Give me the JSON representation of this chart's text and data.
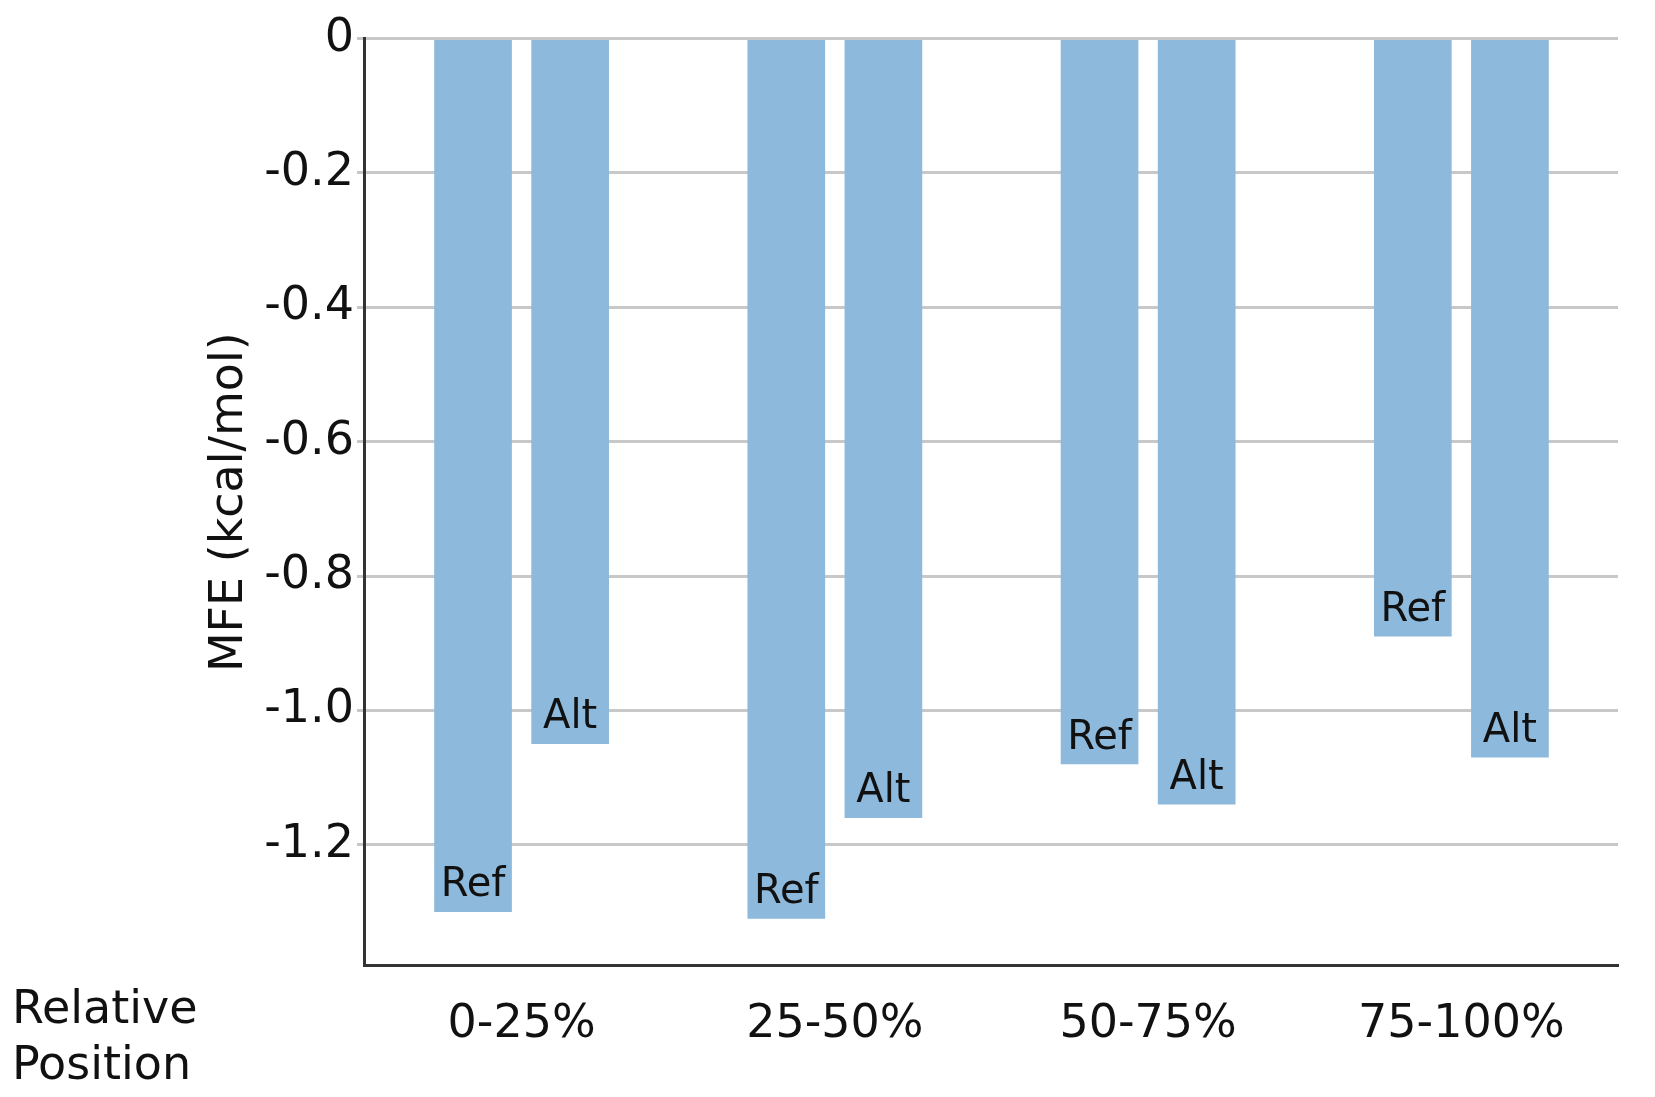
{
  "chart_data": {
    "type": "bar",
    "xlabel": "Relative Position",
    "ylabel": "MFE (kcal/mol)",
    "categories": [
      "0-25%",
      "25-50%",
      "50-75%",
      "75-100%"
    ],
    "series": [
      {
        "name": "Ref",
        "color": "#8db9dc",
        "values": [
          -1.3,
          -1.31,
          -1.08,
          -0.89
        ]
      },
      {
        "name": "Alt",
        "color": "#8db9dc",
        "values": [
          -1.05,
          -1.16,
          -1.14,
          -1.07
        ]
      }
    ],
    "ylim": [
      -1.38,
      0
    ],
    "yticks": [
      0,
      -0.2,
      -0.4,
      -0.6,
      -0.8,
      {
        "value": -1,
        "label": "-1.0"
      },
      -1.2
    ],
    "grid": "y",
    "legend": false
  }
}
